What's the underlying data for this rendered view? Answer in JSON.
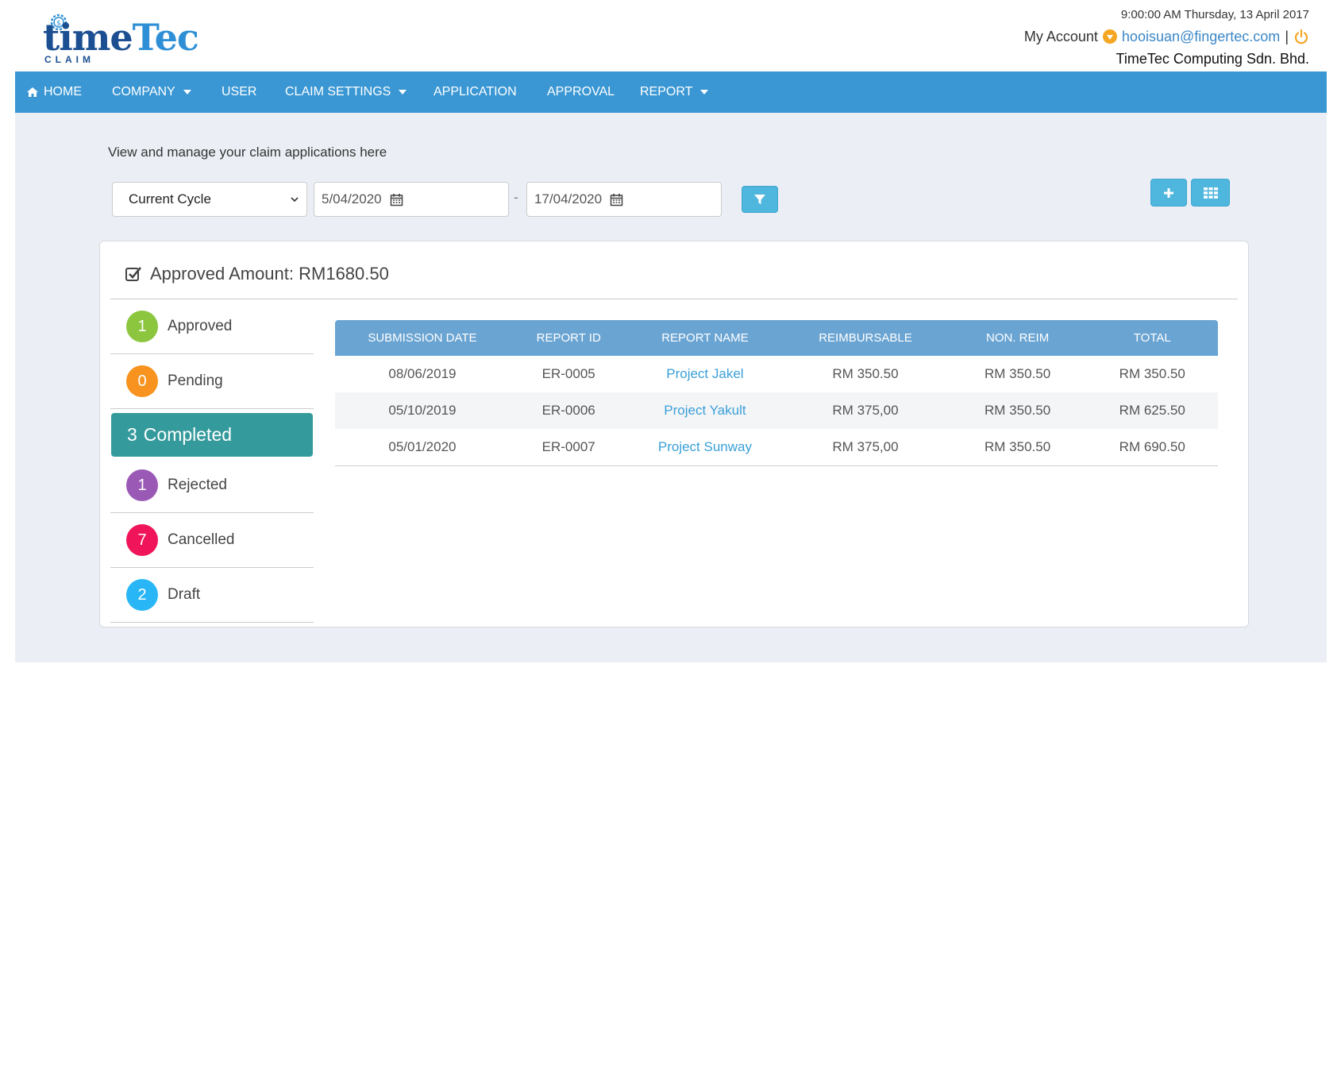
{
  "header": {
    "logo_word_a": "time",
    "logo_word_b": "Tec",
    "logo_sub": "CLAIM",
    "datetime": "9:00:00 AM Thursday, 13 April 2017",
    "my_account": "My Account",
    "email": "hooisuan@fingertec.com",
    "separator": "|",
    "company": "TimeTec Computing Sdn. Bhd."
  },
  "nav": {
    "items": [
      {
        "label": "HOME",
        "icon": "home-icon",
        "dropdown": false
      },
      {
        "label": "COMPANY",
        "dropdown": true
      },
      {
        "label": "USER",
        "dropdown": false
      },
      {
        "label": "CLAIM SETTINGS",
        "dropdown": true
      },
      {
        "label": "APPLICATION",
        "dropdown": false
      },
      {
        "label": "APPROVAL",
        "dropdown": false
      },
      {
        "label": "REPORT",
        "dropdown": true
      }
    ]
  },
  "main": {
    "intro": "View and manage your claim applications here",
    "filters": {
      "cycle": "Current Cycle",
      "date_from": "5/04/2020",
      "separator": "-",
      "date_to": "17/04/2020"
    },
    "panel": {
      "title": "Approved Amount: RM1680.50"
    },
    "statuses": [
      {
        "count": "1",
        "label": "Approved",
        "color": "#8cc63f"
      },
      {
        "count": "0",
        "label": "Pending",
        "color": "#f7931e"
      },
      {
        "count": "3",
        "label": "Completed",
        "color": "#359a9c",
        "active": true
      },
      {
        "count": "1",
        "label": "Rejected",
        "color": "#9b59b6"
      },
      {
        "count": "7",
        "label": "Cancelled",
        "color": "#f0145a"
      },
      {
        "count": "2",
        "label": "Draft",
        "color": "#29b6f6"
      }
    ],
    "table": {
      "headers": [
        "SUBMISSION DATE",
        "REPORT ID",
        "REPORT NAME",
        "REIMBURSABLE",
        "NON. REIM",
        "TOTAL"
      ],
      "rows": [
        [
          "08/06/2019",
          "ER-0005",
          "Project Jakel",
          "RM 350.50",
          "RM 350.50",
          "RM 350.50"
        ],
        [
          "05/10/2019",
          "ER-0006",
          "Project Yakult",
          "RM 375,00",
          "RM 350.50",
          "RM 625.50"
        ],
        [
          "05/01/2020",
          "ER-0007",
          "Project Sunway",
          "RM 375,00",
          "RM 350.50",
          "RM 690.50"
        ]
      ]
    }
  },
  "colors": {
    "nav_bg": "#3a97d4",
    "main_bg": "#ebeff5",
    "table_header": "#6aa4d2",
    "accent_button": "#4fb6de",
    "link": "#3aa0d8",
    "active_status": "#359a9c"
  }
}
